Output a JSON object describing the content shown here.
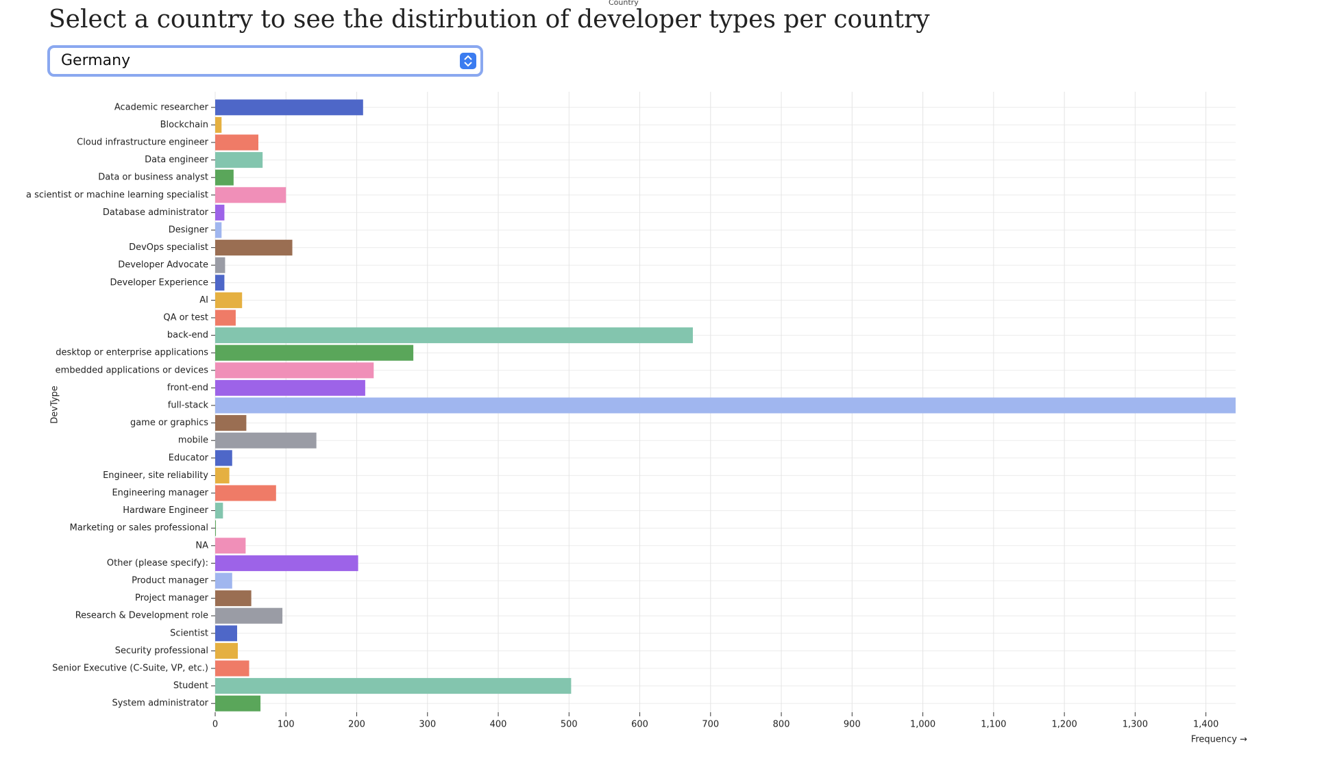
{
  "header": {
    "title": "Select a country to see the distirbution of developer types per country"
  },
  "select": {
    "label": "Country",
    "value": "Germany"
  },
  "chart_data": {
    "type": "barh",
    "x_label": "Frequency →",
    "y_label": "DevType",
    "categories": [
      "Academic researcher",
      "Blockchain",
      "Cloud infrastructure engineer",
      "Data engineer",
      "Data or business analyst",
      "a scientist or machine learning specialist",
      "Database administrator",
      "Designer",
      "DevOps specialist",
      "Developer Advocate",
      "Developer Experience",
      "AI",
      "QA or test",
      "back-end",
      "desktop or enterprise applications",
      "embedded applications or devices",
      "front-end",
      "full-stack",
      "game or graphics",
      "mobile",
      "Educator",
      "Engineer, site reliability",
      "Engineering manager",
      "Hardware Engineer",
      "Marketing or sales professional",
      "NA",
      "Other (please specify):",
      "Product manager",
      "Project manager",
      "Research & Development role",
      "Scientist",
      "Security professional",
      "Senior Executive (C-Suite, VP, etc.)",
      "Student",
      "System administrator"
    ],
    "values": [
      209,
      9,
      61,
      67,
      26,
      100,
      13,
      9,
      109,
      14,
      13,
      38,
      29,
      675,
      280,
      224,
      212,
      1442,
      44,
      143,
      24,
      20,
      86,
      11,
      1,
      43,
      202,
      24,
      51,
      95,
      31,
      32,
      48,
      503,
      64
    ],
    "colors": [
      "#4e67c8",
      "#e5b041",
      "#ef7b67",
      "#83c5ae",
      "#5aa65a",
      "#f08fb8",
      "#9d63e8",
      "#a0b6ef",
      "#9a6e52",
      "#9a9ca5"
    ],
    "xlim": [
      0,
      1442
    ],
    "xticks": [
      0,
      100,
      200,
      300,
      400,
      500,
      600,
      700,
      800,
      900,
      {
        "value": 1000,
        "label": "1,000"
      },
      {
        "value": 1100,
        "label": "1,100"
      },
      {
        "value": 1200,
        "label": "1,200"
      },
      {
        "value": 1300,
        "label": "1,300"
      },
      {
        "value": 1400,
        "label": "1,400"
      }
    ],
    "grid": true
  }
}
